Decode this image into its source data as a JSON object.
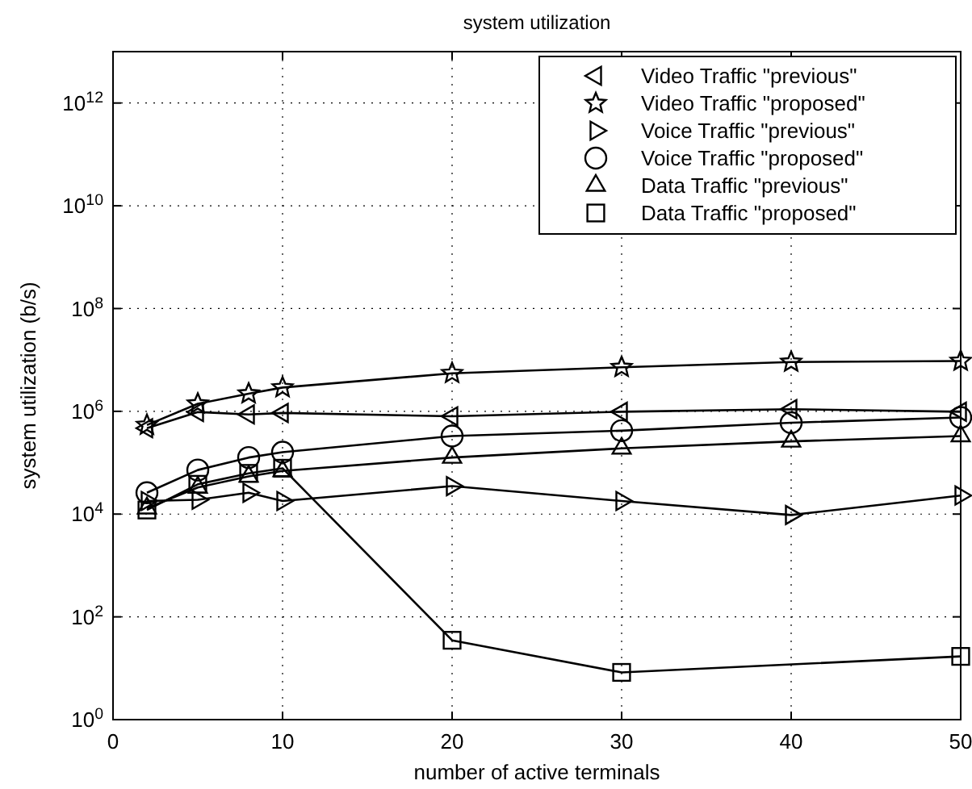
{
  "chart_data": {
    "type": "line",
    "title": "system utilization",
    "xlabel": "number of active terminals",
    "ylabel": "system utilization (b/s)",
    "log": "y",
    "grid": true,
    "legend": "top right",
    "line_style": "solid",
    "xlim": [
      0,
      50
    ],
    "xticks": [
      0,
      10,
      20,
      30,
      40,
      50
    ],
    "ylim": [
      1,
      10000000000000.0
    ],
    "yticks": [
      {
        "value": 1,
        "label": "10$^{0}$"
      },
      {
        "value": 100,
        "label": "10$^{2}$"
      },
      {
        "value": 10000,
        "label": "10$^{4}$"
      },
      {
        "value": 1000000,
        "label": "10$^{6}$"
      },
      {
        "value": 100000000,
        "label": "10$^{8}$"
      },
      {
        "value": 10000000000,
        "label": "10$^{10}$"
      },
      {
        "value": 1000000000000,
        "label": "10$^{12}$"
      }
    ],
    "series": [
      {
        "name": "Video Traffic \"previous\"",
        "color": "#000000",
        "marker": "triangle-left",
        "x": [
          2,
          5,
          8,
          10,
          20,
          30,
          40,
          50
        ],
        "values": [
          470000,
          970000,
          870000,
          930000,
          800000,
          980000,
          1100000,
          980000
        ]
      },
      {
        "name": "Video Traffic \"proposed\"",
        "color": "#000000",
        "marker": "star",
        "x": [
          2,
          5,
          8,
          10,
          20,
          30,
          40,
          50
        ],
        "values": [
          540000,
          1400000,
          2200000,
          2900000,
          5500000,
          7200000,
          9100000,
          9500000
        ]
      },
      {
        "name": "Voice Traffic \"previous\"",
        "color": "#000000",
        "marker": "triangle-right",
        "x": [
          2,
          5,
          8,
          10,
          20,
          30,
          40,
          50
        ],
        "values": [
          18000,
          19000,
          26000,
          18000,
          35000,
          18000,
          9600,
          23000
        ]
      },
      {
        "name": "Voice Traffic \"proposed\"",
        "color": "#000000",
        "marker": "circle",
        "x": [
          2,
          5,
          8,
          10,
          20,
          30,
          40,
          50
        ],
        "values": [
          26000,
          72000,
          126000,
          160000,
          330000,
          420000,
          600000,
          760000
        ]
      },
      {
        "name": "Data Traffic \"previous\"",
        "color": "#000000",
        "marker": "triangle",
        "x": [
          2,
          5,
          8,
          10,
          20,
          30,
          40,
          50
        ],
        "values": [
          13000,
          33000,
          54000,
          69000,
          126000,
          190000,
          260000,
          330000
        ]
      },
      {
        "name": "Data Traffic \"proposed\"",
        "color": "#000000",
        "marker": "square",
        "x": [
          2,
          5,
          8,
          10,
          20,
          30,
          50
        ],
        "values": [
          12000,
          38000,
          62000,
          78000,
          35,
          8.3,
          17
        ]
      }
    ]
  }
}
